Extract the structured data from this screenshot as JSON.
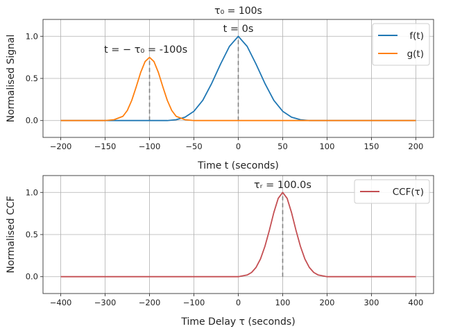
{
  "chart_data": [
    {
      "type": "line",
      "title": "τ₀ = 100s",
      "xlabel": "Time t (seconds)",
      "ylabel": "Normalised Signal",
      "xlim": [
        -220,
        220
      ],
      "ylim": [
        -0.2,
        1.2
      ],
      "xticks": [
        -200,
        -150,
        -100,
        -50,
        0,
        50,
        100,
        150,
        200
      ],
      "yticks": [
        0.0,
        0.5,
        1.0
      ],
      "xtick_labels": [
        "−200",
        "−150",
        "−100",
        "−50",
        "0",
        "50",
        "100",
        "150",
        "200"
      ],
      "ytick_labels": [
        "0.0",
        "0.5",
        "1.0"
      ],
      "grid": true,
      "legend": "top-right",
      "series": [
        {
          "name": "f(t)",
          "color": "#1f77b4",
          "x": [
            -200,
            -100,
            -80,
            -70,
            -60,
            -50,
            -40,
            -30,
            -20,
            -10,
            0,
            10,
            20,
            30,
            40,
            50,
            60,
            70,
            80,
            100,
            200
          ],
          "y": [
            0.0,
            0.0,
            0.0,
            0.01,
            0.04,
            0.11,
            0.24,
            0.44,
            0.67,
            0.88,
            1.0,
            0.88,
            0.67,
            0.44,
            0.24,
            0.11,
            0.04,
            0.01,
            0.0,
            0.0,
            0.0
          ]
        },
        {
          "name": "g(t)",
          "color": "#ff7f0e",
          "x": [
            -200,
            -150,
            -140,
            -130,
            -125,
            -120,
            -115,
            -110,
            -105,
            -100,
            -95,
            -90,
            -85,
            -80,
            -75,
            -70,
            -60,
            -50,
            200
          ],
          "y": [
            0.0,
            0.0,
            0.01,
            0.05,
            0.12,
            0.24,
            0.4,
            0.57,
            0.7,
            0.75,
            0.7,
            0.57,
            0.4,
            0.24,
            0.12,
            0.05,
            0.01,
            0.0,
            0.0
          ]
        }
      ],
      "annotations": [
        {
          "text": "t = 0s",
          "x": 0
        },
        {
          "text": "t = − τ₀ = -100s",
          "x": -100
        }
      ]
    },
    {
      "type": "line",
      "xlabel": "Time Delay τ (seconds)",
      "ylabel": "Normalised CCF",
      "xlim": [
        -440,
        440
      ],
      "ylim": [
        -0.2,
        1.2
      ],
      "xticks": [
        -400,
        -300,
        -200,
        -100,
        0,
        100,
        200,
        300,
        400
      ],
      "yticks": [
        0.0,
        0.5,
        1.0
      ],
      "xtick_labels": [
        "−400",
        "−300",
        "−200",
        "−100",
        "0",
        "100",
        "200",
        "300",
        "400"
      ],
      "ytick_labels": [
        "0.0",
        "0.5",
        "1.0"
      ],
      "grid": true,
      "legend": "top-right",
      "series": [
        {
          "name": "CCF(τ)",
          "color": "#c44e52",
          "x": [
            -400,
            0,
            10,
            20,
            30,
            40,
            50,
            60,
            70,
            80,
            90,
            100,
            110,
            120,
            130,
            140,
            150,
            160,
            170,
            180,
            190,
            200,
            400
          ],
          "y": [
            0.0,
            0.0,
            0.01,
            0.02,
            0.05,
            0.11,
            0.21,
            0.36,
            0.55,
            0.76,
            0.93,
            1.0,
            0.93,
            0.76,
            0.55,
            0.36,
            0.21,
            0.11,
            0.05,
            0.02,
            0.01,
            0.0,
            0.0
          ]
        }
      ],
      "annotations": [
        {
          "text": "τᵣ = 100.0s",
          "x": 100
        }
      ]
    }
  ]
}
